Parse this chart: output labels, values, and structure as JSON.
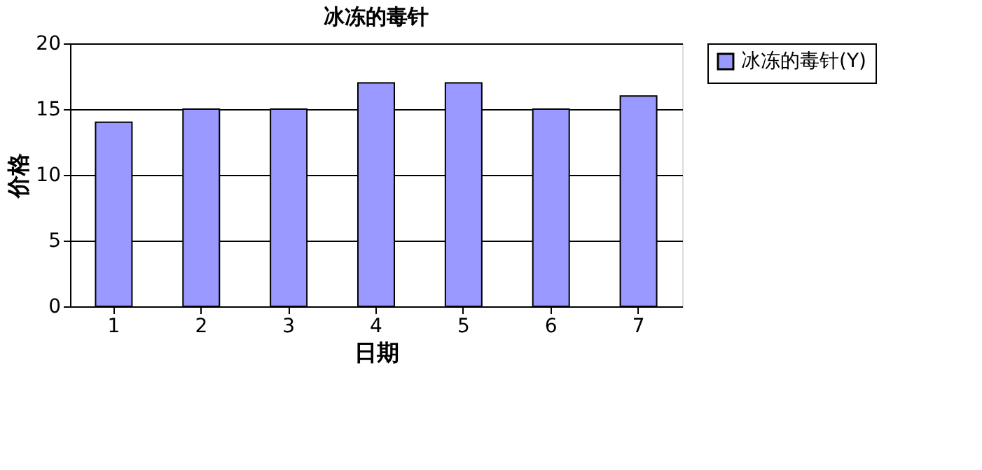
{
  "chart_data": {
    "type": "bar",
    "title": "冰冻的毒针",
    "xlabel": "日期",
    "ylabel": "价格",
    "categories": [
      "1",
      "2",
      "3",
      "4",
      "5",
      "6",
      "7"
    ],
    "series": [
      {
        "name": "冰冻的毒针(Y)",
        "color": "#9999ff",
        "values": [
          14,
          15,
          15,
          17,
          17,
          15,
          16
        ]
      }
    ],
    "ylim": [
      0,
      20
    ],
    "yticks": [
      0,
      5,
      10,
      15,
      20
    ],
    "grid": "y",
    "legend": "right"
  }
}
